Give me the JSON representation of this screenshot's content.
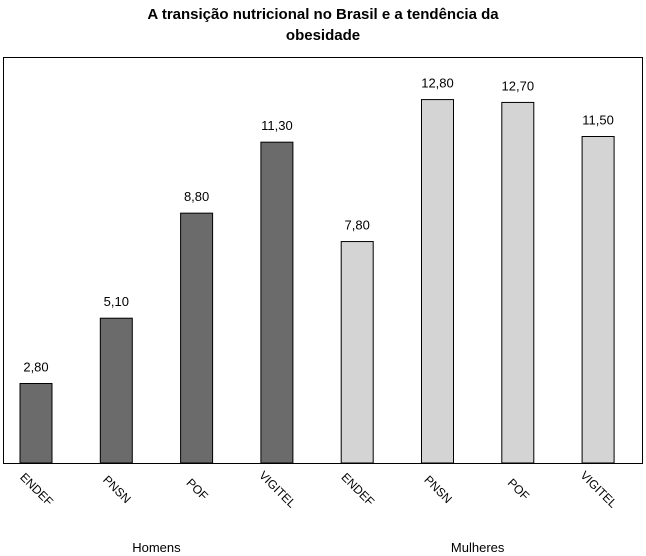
{
  "chart_data": {
    "type": "bar",
    "title": "A transição nutricional no Brasil e a tendência da obesidade",
    "groups": [
      {
        "name": "Homens",
        "color": "#6b6b6b",
        "categories": [
          "ENDEF",
          "PNSN",
          "POF",
          "VIGITEL"
        ],
        "values": [
          2.8,
          5.1,
          8.8,
          11.3
        ],
        "value_labels": [
          "2,80",
          "5,10",
          "8,80",
          "11,30"
        ]
      },
      {
        "name": "Mulheres",
        "color": "#d4d4d4",
        "categories": [
          "ENDEF",
          "PNSN",
          "POF",
          "VIGITEL"
        ],
        "values": [
          7.8,
          12.8,
          12.7,
          11.5
        ],
        "value_labels": [
          "7,80",
          "12,80",
          "12,70",
          "11,50"
        ]
      }
    ],
    "ylim": [
      0,
      14.3
    ]
  }
}
